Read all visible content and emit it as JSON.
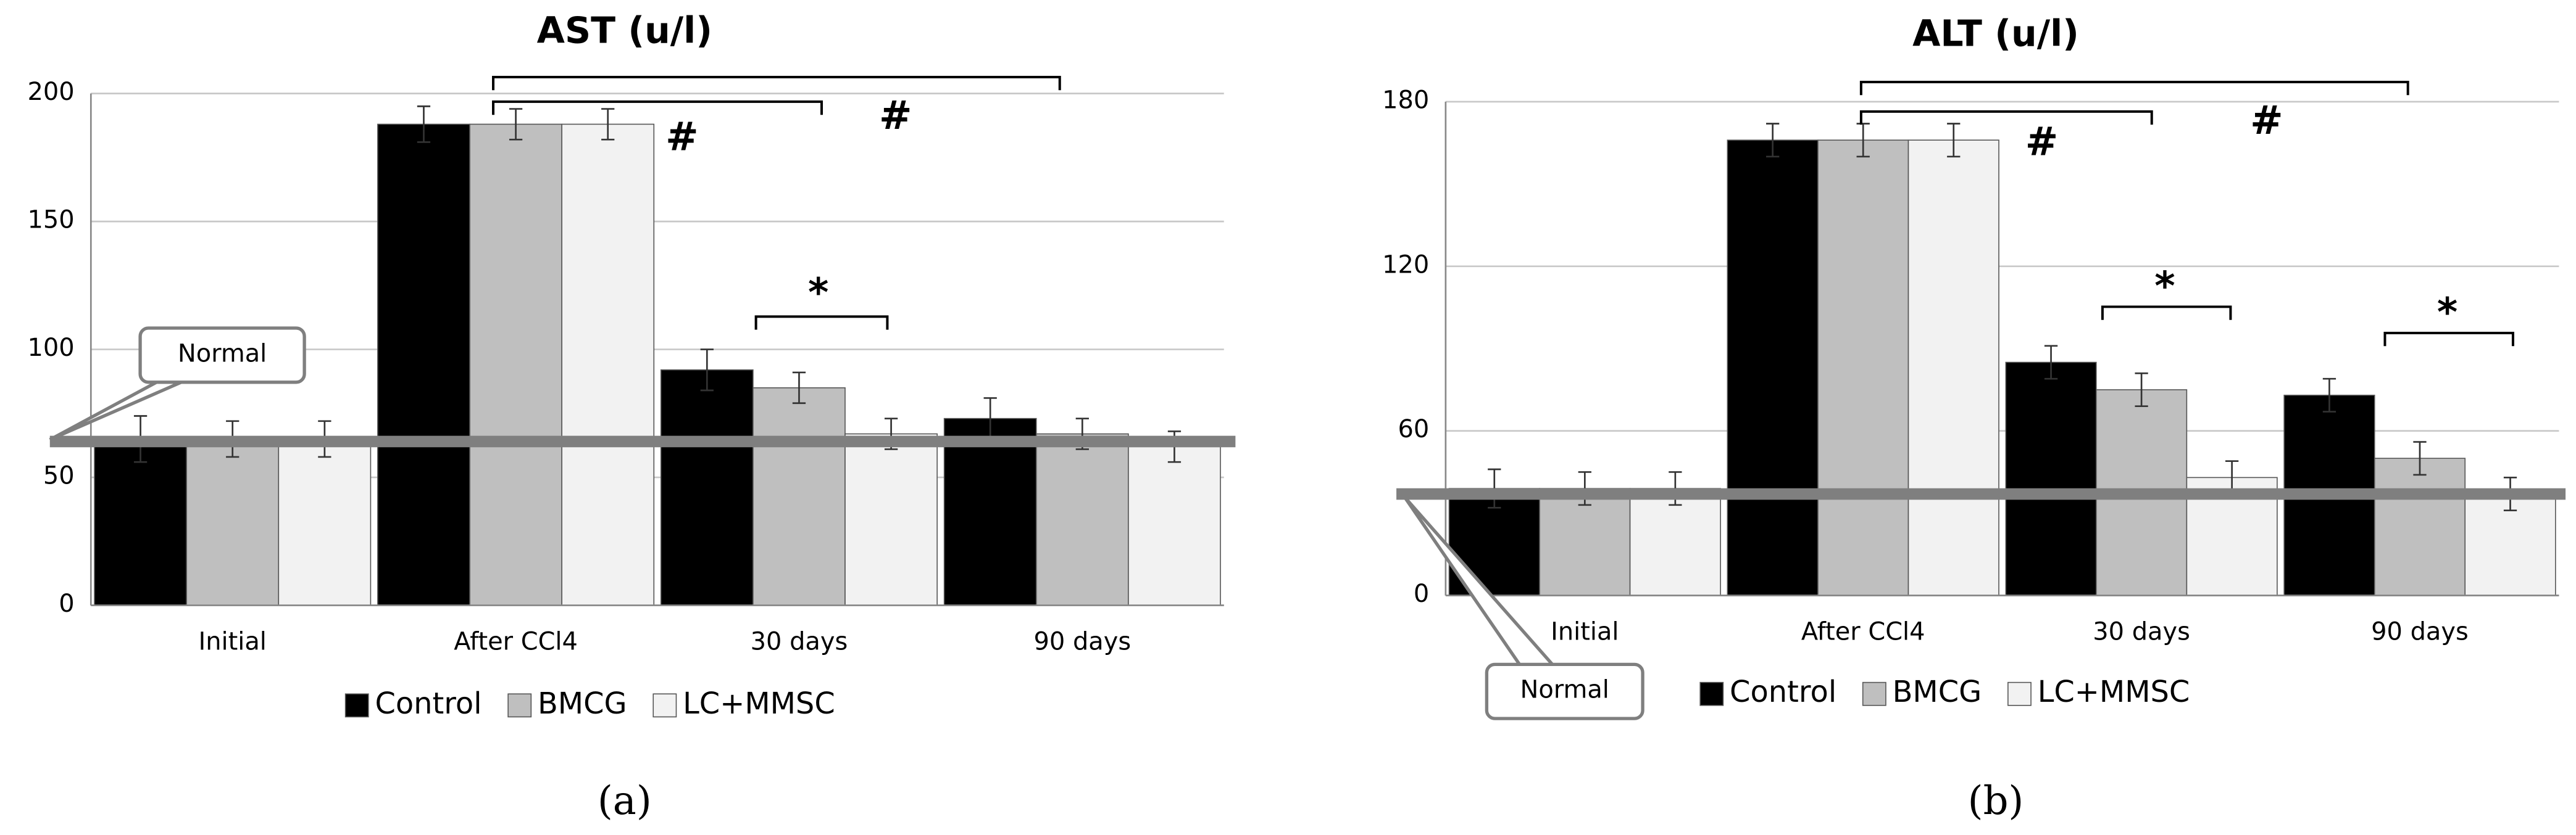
{
  "chart_data": [
    {
      "type": "bar",
      "title": "AST (u/l)",
      "panel_label": "(a)",
      "categories": [
        "Initial",
        "After CCl4",
        "30 days",
        "90 days"
      ],
      "series": [
        {
          "name": "Control",
          "color": "#000000",
          "values": [
            65,
            188,
            92,
            73
          ],
          "errors": [
            9,
            7,
            8,
            8
          ]
        },
        {
          "name": "BMCG",
          "color": "#bfbfbf",
          "values": [
            65,
            188,
            85,
            67
          ],
          "errors": [
            7,
            6,
            6,
            6
          ]
        },
        {
          "name": "LC+MMSC",
          "color": "#f2f2f2",
          "values": [
            65,
            188,
            67,
            62
          ],
          "errors": [
            7,
            6,
            6,
            6
          ]
        }
      ],
      "ylim": [
        0,
        200
      ],
      "yticks": [
        0,
        50,
        100,
        150,
        200
      ],
      "grid": true,
      "normal_label": "Normal",
      "normal_value": 64,
      "annotations": [
        "#",
        "#",
        "*"
      ]
    },
    {
      "type": "bar",
      "title": "ALT (u/l)",
      "panel_label": "(b)",
      "categories": [
        "Initial",
        "After CCl4",
        "30 days",
        "90 days"
      ],
      "series": [
        {
          "name": "Control",
          "color": "#000000",
          "values": [
            39,
            166,
            85,
            73
          ],
          "errors": [
            7,
            6,
            6,
            6
          ]
        },
        {
          "name": "BMCG",
          "color": "#bfbfbf",
          "values": [
            39,
            166,
            75,
            50
          ],
          "errors": [
            6,
            6,
            6,
            6
          ]
        },
        {
          "name": "LC+MMSC",
          "color": "#f2f2f2",
          "values": [
            39,
            166,
            43,
            37
          ],
          "errors": [
            6,
            6,
            6,
            6
          ]
        }
      ],
      "ylim": [
        0,
        180
      ],
      "yticks": [
        0,
        60,
        120,
        180
      ],
      "grid": true,
      "normal_label": "Normal",
      "normal_value": 37,
      "annotations": [
        "#",
        "#",
        "*",
        "*"
      ]
    }
  ]
}
